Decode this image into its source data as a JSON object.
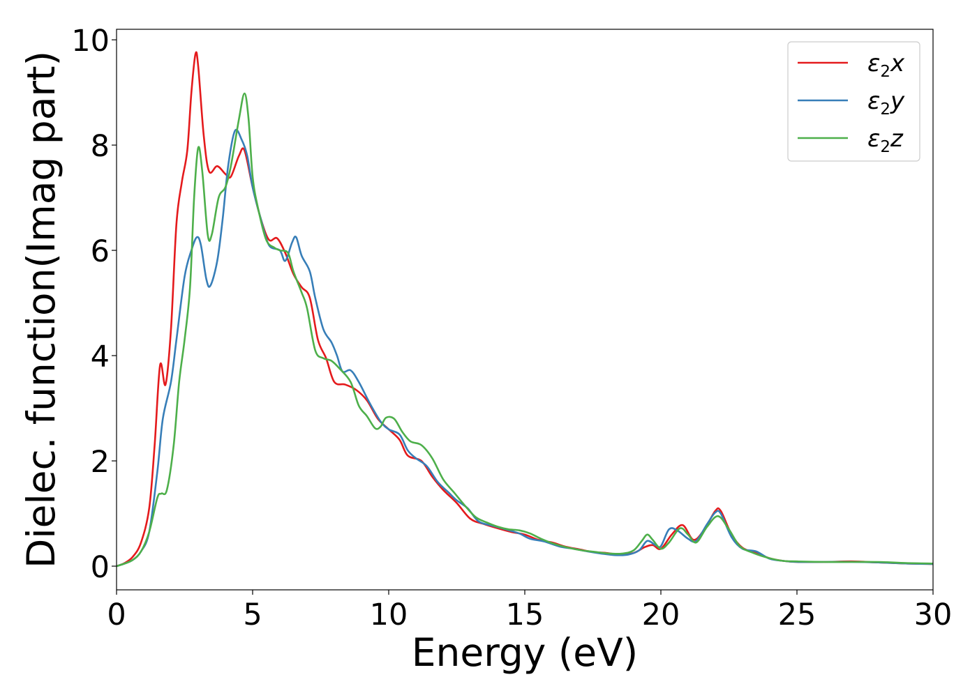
{
  "chart_data": {
    "type": "line",
    "xlabel": "Energy (eV)",
    "ylabel": "Dielec. function(Imag part)",
    "xlim": [
      0,
      30
    ],
    "ylim": [
      -0.45,
      10.2
    ],
    "xticks": [
      0,
      5,
      10,
      15,
      20,
      25,
      30
    ],
    "yticks": [
      0,
      2,
      4,
      6,
      8,
      10
    ],
    "grid": false,
    "legend_position": "top-right",
    "series": [
      {
        "name": "ε2x",
        "symbol": "ε",
        "sub": "2",
        "axis": "x",
        "color": "#e41a1c",
        "points": [
          [
            0,
            0
          ],
          [
            0.3,
            0.06
          ],
          [
            0.6,
            0.18
          ],
          [
            0.9,
            0.45
          ],
          [
            1.2,
            1.1
          ],
          [
            1.4,
            2.3
          ],
          [
            1.6,
            3.82
          ],
          [
            1.8,
            3.45
          ],
          [
            2.0,
            4.5
          ],
          [
            2.2,
            6.5
          ],
          [
            2.4,
            7.3
          ],
          [
            2.6,
            7.9
          ],
          [
            2.75,
            9.0
          ],
          [
            2.9,
            9.73
          ],
          [
            3.0,
            9.5
          ],
          [
            3.2,
            8.2
          ],
          [
            3.4,
            7.5
          ],
          [
            3.7,
            7.6
          ],
          [
            4.0,
            7.45
          ],
          [
            4.2,
            7.4
          ],
          [
            4.5,
            7.8
          ],
          [
            4.7,
            7.9
          ],
          [
            5.0,
            7.2
          ],
          [
            5.3,
            6.6
          ],
          [
            5.6,
            6.2
          ],
          [
            5.9,
            6.23
          ],
          [
            6.2,
            5.95
          ],
          [
            6.5,
            5.55
          ],
          [
            6.8,
            5.3
          ],
          [
            7.1,
            5.1
          ],
          [
            7.4,
            4.3
          ],
          [
            7.7,
            3.95
          ],
          [
            8.0,
            3.5
          ],
          [
            8.4,
            3.45
          ],
          [
            8.8,
            3.35
          ],
          [
            9.2,
            3.15
          ],
          [
            9.6,
            2.8
          ],
          [
            10.0,
            2.6
          ],
          [
            10.4,
            2.4
          ],
          [
            10.7,
            2.1
          ],
          [
            11.2,
            2.0
          ],
          [
            11.6,
            1.7
          ],
          [
            12.0,
            1.45
          ],
          [
            12.5,
            1.2
          ],
          [
            13.0,
            0.9
          ],
          [
            13.5,
            0.8
          ],
          [
            14.0,
            0.72
          ],
          [
            14.5,
            0.65
          ],
          [
            15.0,
            0.6
          ],
          [
            15.5,
            0.5
          ],
          [
            16.0,
            0.45
          ],
          [
            16.5,
            0.37
          ],
          [
            17.0,
            0.32
          ],
          [
            17.5,
            0.27
          ],
          [
            18.0,
            0.25
          ],
          [
            18.5,
            0.22
          ],
          [
            19.0,
            0.25
          ],
          [
            19.4,
            0.36
          ],
          [
            19.7,
            0.4
          ],
          [
            20.0,
            0.33
          ],
          [
            20.4,
            0.6
          ],
          [
            20.8,
            0.78
          ],
          [
            21.2,
            0.5
          ],
          [
            21.6,
            0.7
          ],
          [
            22.0,
            1.05
          ],
          [
            22.2,
            1.05
          ],
          [
            22.6,
            0.6
          ],
          [
            23.0,
            0.35
          ],
          [
            23.5,
            0.25
          ],
          [
            24.0,
            0.15
          ],
          [
            24.5,
            0.1
          ],
          [
            25.0,
            0.08
          ],
          [
            26.0,
            0.08
          ],
          [
            27.0,
            0.09
          ],
          [
            28.0,
            0.07
          ],
          [
            29.0,
            0.05
          ],
          [
            30.0,
            0.04
          ]
        ]
      },
      {
        "name": "ε2y",
        "symbol": "ε",
        "sub": "2",
        "axis": "y",
        "color": "#377eb8",
        "points": [
          [
            0,
            0
          ],
          [
            0.3,
            0.05
          ],
          [
            0.6,
            0.12
          ],
          [
            0.9,
            0.28
          ],
          [
            1.2,
            0.65
          ],
          [
            1.5,
            1.8
          ],
          [
            1.7,
            2.8
          ],
          [
            2.0,
            3.5
          ],
          [
            2.2,
            4.3
          ],
          [
            2.5,
            5.5
          ],
          [
            2.75,
            6.0
          ],
          [
            2.95,
            6.25
          ],
          [
            3.1,
            6.1
          ],
          [
            3.3,
            5.45
          ],
          [
            3.45,
            5.33
          ],
          [
            3.7,
            5.8
          ],
          [
            3.9,
            6.6
          ],
          [
            4.1,
            7.6
          ],
          [
            4.35,
            8.27
          ],
          [
            4.6,
            8.1
          ],
          [
            4.8,
            7.8
          ],
          [
            5.0,
            7.2
          ],
          [
            5.3,
            6.6
          ],
          [
            5.6,
            6.1
          ],
          [
            6.0,
            6.0
          ],
          [
            6.2,
            5.8
          ],
          [
            6.45,
            6.15
          ],
          [
            6.6,
            6.25
          ],
          [
            6.8,
            5.9
          ],
          [
            7.1,
            5.6
          ],
          [
            7.3,
            5.1
          ],
          [
            7.6,
            4.5
          ],
          [
            7.9,
            4.25
          ],
          [
            8.1,
            4.0
          ],
          [
            8.3,
            3.7
          ],
          [
            8.6,
            3.72
          ],
          [
            8.9,
            3.5
          ],
          [
            9.3,
            3.1
          ],
          [
            9.7,
            2.75
          ],
          [
            10.0,
            2.6
          ],
          [
            10.4,
            2.5
          ],
          [
            10.7,
            2.2
          ],
          [
            11.0,
            2.05
          ],
          [
            11.4,
            1.9
          ],
          [
            11.8,
            1.6
          ],
          [
            12.2,
            1.4
          ],
          [
            12.5,
            1.25
          ],
          [
            12.9,
            1.1
          ],
          [
            13.3,
            0.85
          ],
          [
            13.8,
            0.77
          ],
          [
            14.3,
            0.7
          ],
          [
            14.8,
            0.62
          ],
          [
            15.2,
            0.52
          ],
          [
            15.7,
            0.47
          ],
          [
            16.3,
            0.37
          ],
          [
            16.8,
            0.33
          ],
          [
            17.3,
            0.28
          ],
          [
            17.8,
            0.24
          ],
          [
            18.3,
            0.21
          ],
          [
            18.8,
            0.22
          ],
          [
            19.2,
            0.3
          ],
          [
            19.5,
            0.48
          ],
          [
            19.8,
            0.4
          ],
          [
            20.0,
            0.38
          ],
          [
            20.3,
            0.7
          ],
          [
            20.6,
            0.68
          ],
          [
            21.0,
            0.52
          ],
          [
            21.3,
            0.48
          ],
          [
            21.7,
            0.8
          ],
          [
            22.0,
            1.02
          ],
          [
            22.2,
            1.0
          ],
          [
            22.6,
            0.55
          ],
          [
            23.0,
            0.33
          ],
          [
            23.5,
            0.28
          ],
          [
            24.0,
            0.14
          ],
          [
            24.5,
            0.1
          ],
          [
            25.0,
            0.08
          ],
          [
            26.0,
            0.08
          ],
          [
            27.0,
            0.08
          ],
          [
            28.0,
            0.07
          ],
          [
            29.0,
            0.05
          ],
          [
            30.0,
            0.04
          ]
        ]
      },
      {
        "name": "ε2z",
        "symbol": "ε",
        "sub": "2",
        "axis": "z",
        "color": "#4daf4a",
        "points": [
          [
            0,
            0
          ],
          [
            0.3,
            0.05
          ],
          [
            0.6,
            0.12
          ],
          [
            0.9,
            0.28
          ],
          [
            1.2,
            0.65
          ],
          [
            1.5,
            1.3
          ],
          [
            1.65,
            1.38
          ],
          [
            1.85,
            1.45
          ],
          [
            2.1,
            2.3
          ],
          [
            2.3,
            3.5
          ],
          [
            2.5,
            4.3
          ],
          [
            2.7,
            5.3
          ],
          [
            2.85,
            7.0
          ],
          [
            3.0,
            7.95
          ],
          [
            3.15,
            7.5
          ],
          [
            3.35,
            6.3
          ],
          [
            3.5,
            6.3
          ],
          [
            3.75,
            7.0
          ],
          [
            4.0,
            7.2
          ],
          [
            4.2,
            7.6
          ],
          [
            4.5,
            8.5
          ],
          [
            4.7,
            8.98
          ],
          [
            4.85,
            8.5
          ],
          [
            5.0,
            7.4
          ],
          [
            5.2,
            6.8
          ],
          [
            5.5,
            6.2
          ],
          [
            5.8,
            6.05
          ],
          [
            6.0,
            6.0
          ],
          [
            6.3,
            5.95
          ],
          [
            6.5,
            5.6
          ],
          [
            6.8,
            5.2
          ],
          [
            7.0,
            4.9
          ],
          [
            7.3,
            4.1
          ],
          [
            7.6,
            3.95
          ],
          [
            7.9,
            3.9
          ],
          [
            8.2,
            3.75
          ],
          [
            8.6,
            3.5
          ],
          [
            8.9,
            3.05
          ],
          [
            9.2,
            2.85
          ],
          [
            9.5,
            2.62
          ],
          [
            9.7,
            2.65
          ],
          [
            9.9,
            2.82
          ],
          [
            10.2,
            2.8
          ],
          [
            10.5,
            2.55
          ],
          [
            10.8,
            2.37
          ],
          [
            11.2,
            2.3
          ],
          [
            11.6,
            2.05
          ],
          [
            12.0,
            1.65
          ],
          [
            12.4,
            1.4
          ],
          [
            12.8,
            1.15
          ],
          [
            13.2,
            0.93
          ],
          [
            13.6,
            0.83
          ],
          [
            14.0,
            0.75
          ],
          [
            14.4,
            0.7
          ],
          [
            14.8,
            0.68
          ],
          [
            15.2,
            0.62
          ],
          [
            15.6,
            0.52
          ],
          [
            16.1,
            0.42
          ],
          [
            16.6,
            0.35
          ],
          [
            17.1,
            0.3
          ],
          [
            17.6,
            0.27
          ],
          [
            18.1,
            0.24
          ],
          [
            18.6,
            0.24
          ],
          [
            19.0,
            0.3
          ],
          [
            19.3,
            0.48
          ],
          [
            19.5,
            0.6
          ],
          [
            19.7,
            0.5
          ],
          [
            20.0,
            0.33
          ],
          [
            20.3,
            0.45
          ],
          [
            20.7,
            0.72
          ],
          [
            21.0,
            0.6
          ],
          [
            21.3,
            0.45
          ],
          [
            21.7,
            0.75
          ],
          [
            22.1,
            0.95
          ],
          [
            22.5,
            0.7
          ],
          [
            22.9,
            0.38
          ],
          [
            23.4,
            0.25
          ],
          [
            24.0,
            0.15
          ],
          [
            24.5,
            0.1
          ],
          [
            25.0,
            0.09
          ],
          [
            26.0,
            0.08
          ],
          [
            27.0,
            0.08
          ],
          [
            28.0,
            0.08
          ],
          [
            29.0,
            0.06
          ],
          [
            30.0,
            0.05
          ]
        ]
      }
    ]
  }
}
